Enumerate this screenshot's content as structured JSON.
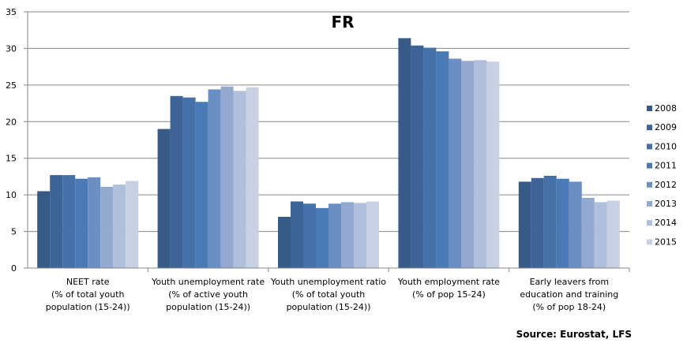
{
  "chart_data": {
    "type": "bar",
    "title": "FR",
    "source": "Source: Eurostat, LFS",
    "xlabel": "",
    "ylabel": "",
    "ylim": [
      0,
      35
    ],
    "yticks": [
      0,
      5,
      10,
      15,
      20,
      25,
      30,
      35
    ],
    "grid": true,
    "legend_position": "right",
    "categories": [
      [
        "NEET rate",
        "(% of total youth",
        "population (15-24))"
      ],
      [
        "Youth unemployment rate",
        "(% of active youth",
        "population (15-24))"
      ],
      [
        "Youth unemployment ratio",
        "(% of total youth",
        "population (15-24))"
      ],
      [
        "Youth employment rate",
        "(% of pop 15-24)"
      ],
      [
        "Early leavers from",
        "education and training",
        "(% of pop 18-24)"
      ]
    ],
    "series": [
      {
        "name": "2008",
        "color": "#375A87",
        "values": [
          10.5,
          19.0,
          7.0,
          31.4,
          11.8
        ]
      },
      {
        "name": "2009",
        "color": "#3E6396",
        "values": [
          12.7,
          23.5,
          9.1,
          30.4,
          12.3
        ]
      },
      {
        "name": "2010",
        "color": "#4571A8",
        "values": [
          12.7,
          23.3,
          8.8,
          30.1,
          12.6
        ]
      },
      {
        "name": "2011",
        "color": "#4A7AB5",
        "values": [
          12.2,
          22.7,
          8.2,
          29.6,
          12.2
        ]
      },
      {
        "name": "2012",
        "color": "#6B8FC3",
        "values": [
          12.4,
          24.4,
          8.8,
          28.6,
          11.8
        ]
      },
      {
        "name": "2013",
        "color": "#93A9D0",
        "values": [
          11.1,
          24.8,
          9.0,
          28.3,
          9.6
        ]
      },
      {
        "name": "2014",
        "color": "#B0BFDB",
        "values": [
          11.4,
          24.2,
          8.9,
          28.4,
          9.0
        ]
      },
      {
        "name": "2015",
        "color": "#C8D0E4",
        "values": [
          11.9,
          24.7,
          9.1,
          28.2,
          9.2
        ]
      }
    ]
  }
}
